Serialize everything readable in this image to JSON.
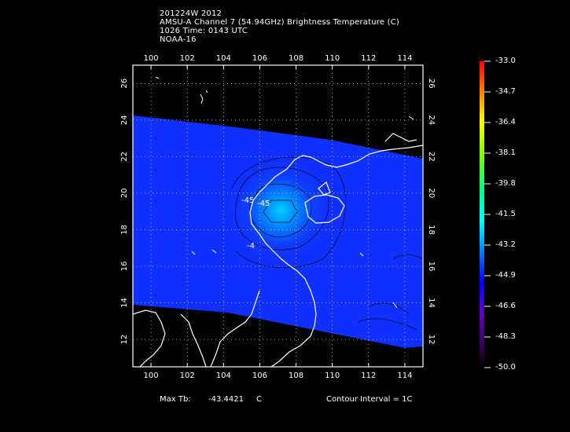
{
  "header": {
    "line1": "201224W 2012",
    "line2": "AMSU-A Channel 7 (54.94GHz) Brightness Temperature (C)",
    "line3": "1026 Time: 0143 UTC",
    "line4": "NOAA-16"
  },
  "map": {
    "lon_ticks": [
      "100",
      "102",
      "104",
      "106",
      "108",
      "110",
      "112",
      "114"
    ],
    "lat_ticks": [
      "12",
      "14",
      "16",
      "18",
      "20",
      "22",
      "24",
      "26"
    ],
    "lon_range": [
      99,
      115
    ],
    "lat_range": [
      10.5,
      27
    ],
    "contour_labels": [
      "-45",
      "-45",
      "-4"
    ]
  },
  "colorbar": {
    "labels": [
      "-33.0",
      "-34.7",
      "-36.4",
      "-38.1",
      "-39.8",
      "-41.5",
      "-43.2",
      "-44.9",
      "-46.6",
      "-48.3",
      "-50.0"
    ],
    "colors": [
      "#ff0000",
      "#ff8000",
      "#ffff00",
      "#80ff00",
      "#00ff80",
      "#00ffff",
      "#0080ff",
      "#0000ff",
      "#6000c0",
      "#400060",
      "#000000"
    ]
  },
  "footer": {
    "max_tb_label": "Max Tb:",
    "max_tb_value": "-43.4421",
    "max_tb_unit": "C",
    "contour_interval": "Contour Interval = 1C"
  }
}
